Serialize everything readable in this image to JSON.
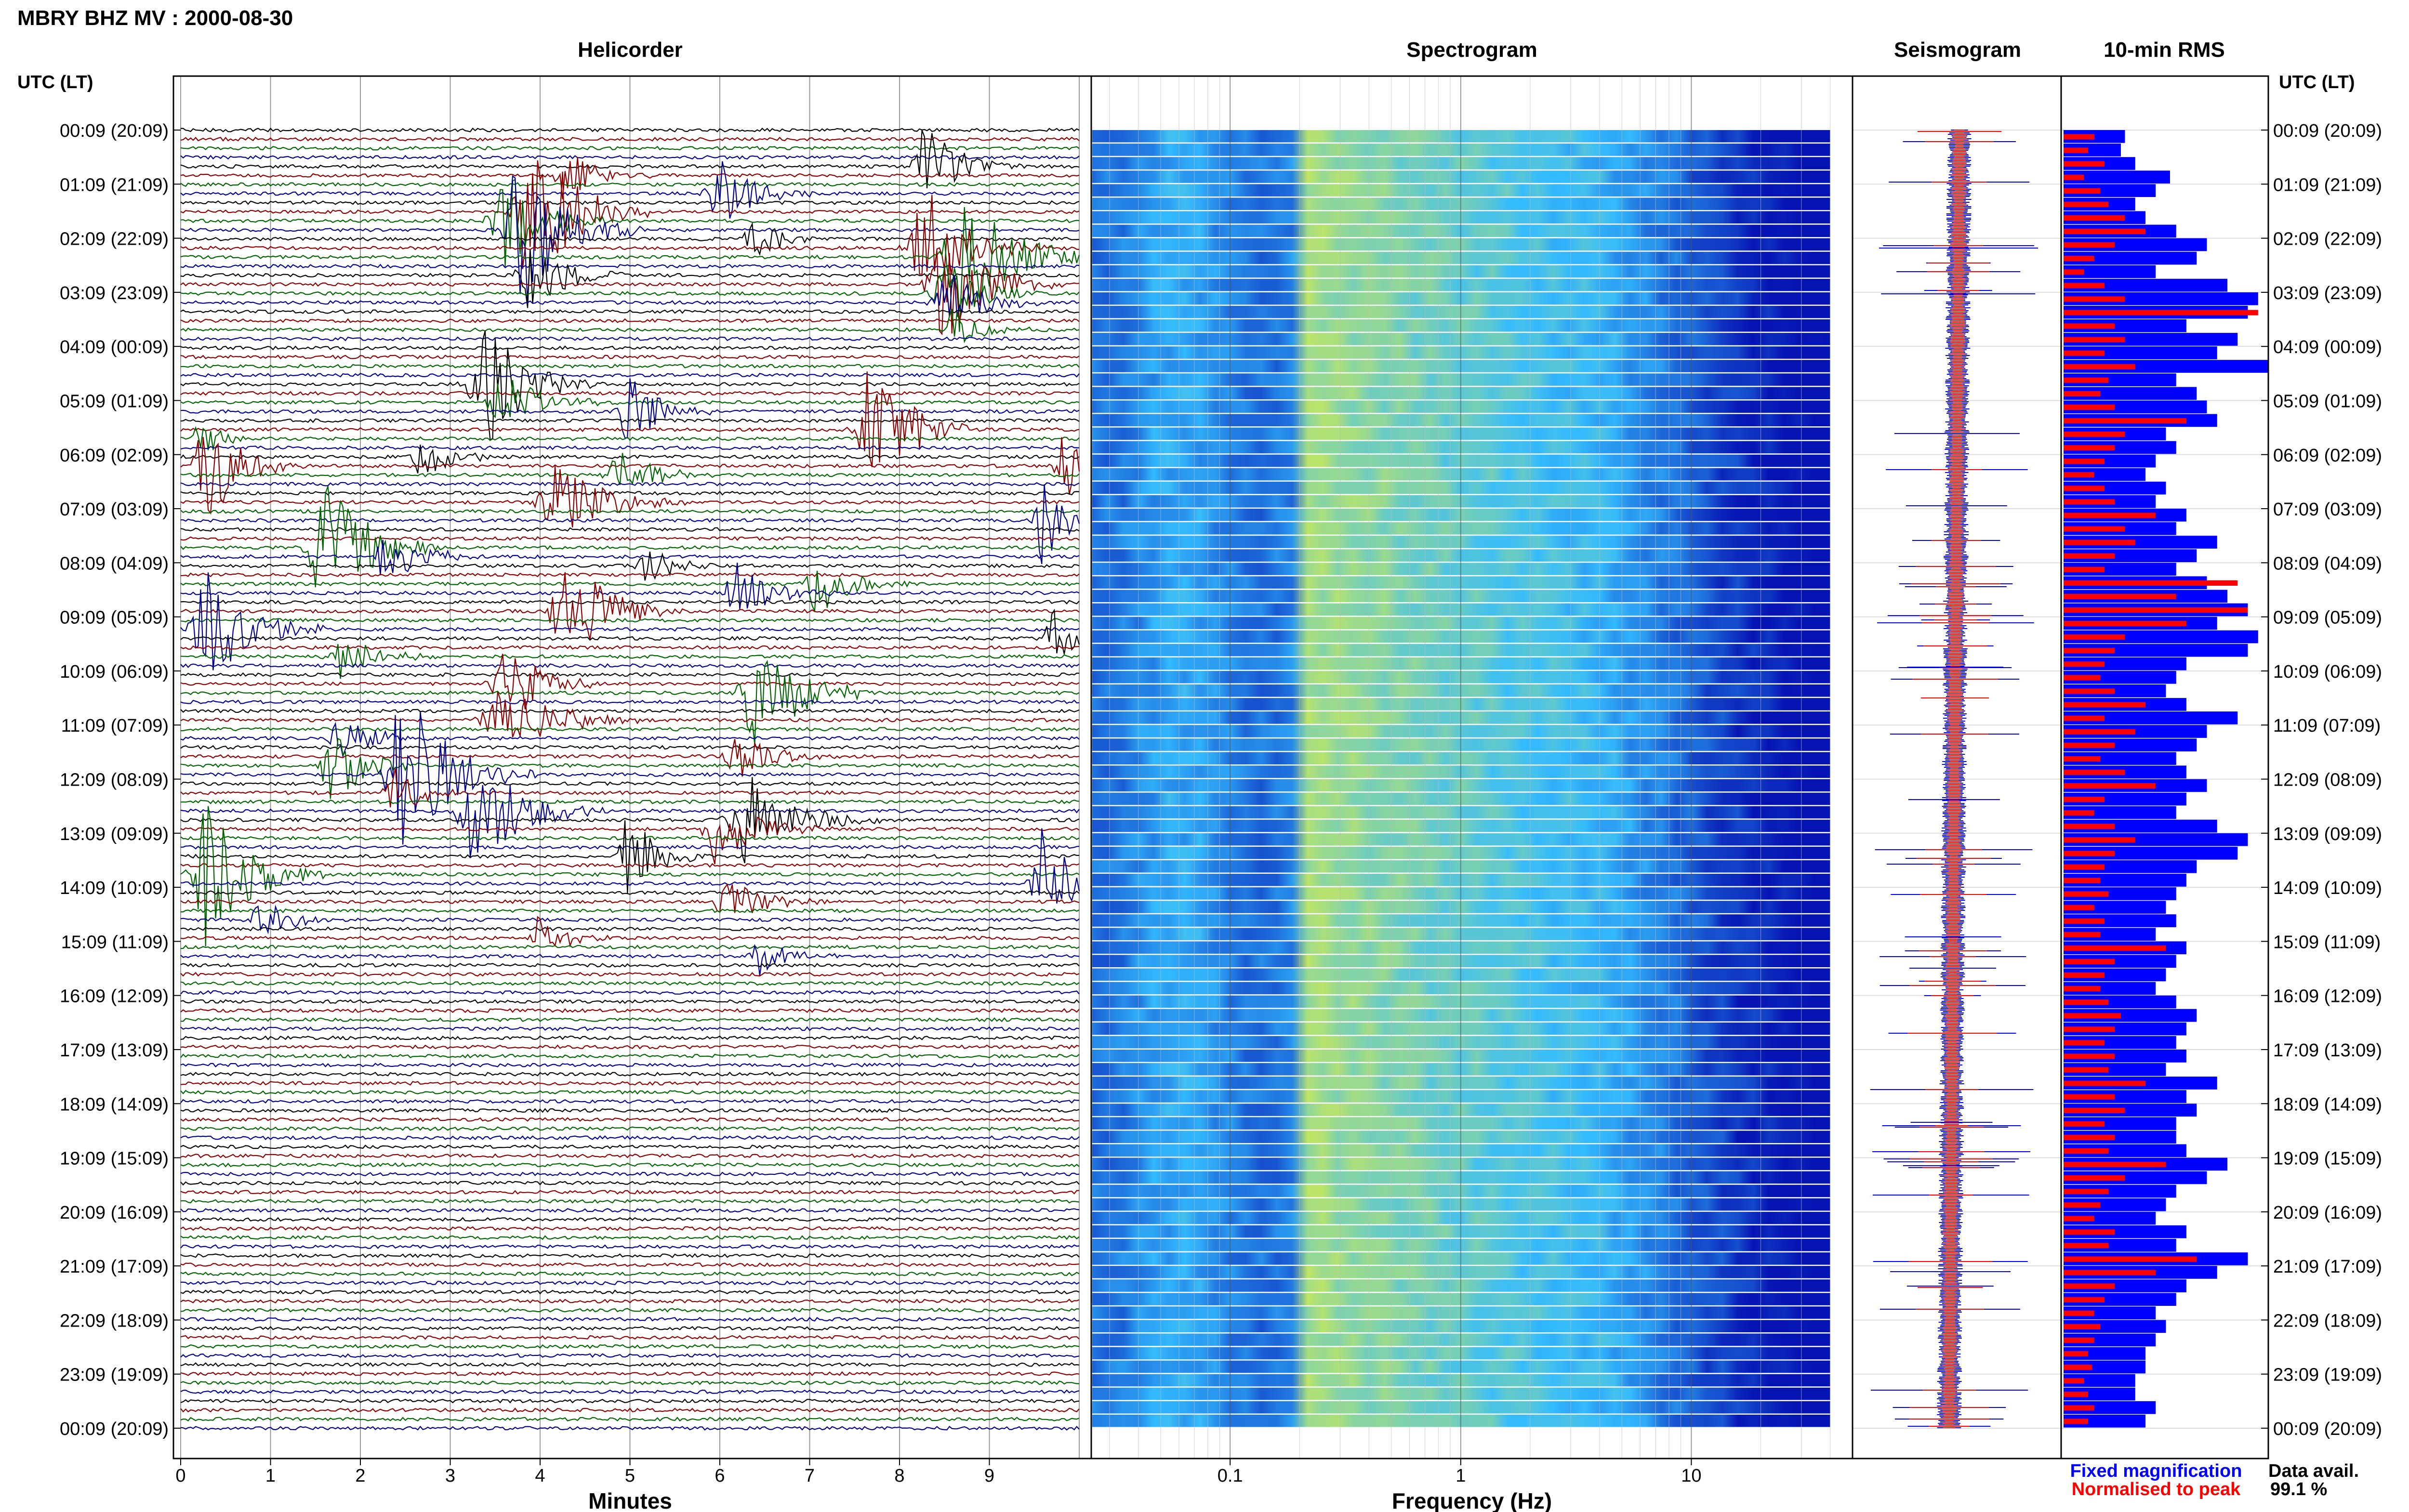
{
  "header": {
    "title": "MBRY BHZ MV : 2000-08-30",
    "utc_label": "UTC (LT)",
    "data_avail_label": "Data avail.",
    "data_avail_value": "99.1 %"
  },
  "panels": {
    "helicorder": "Helicorder",
    "spectrogram": "Spectrogram",
    "seismogram": "Seismogram",
    "rms": "10-min RMS"
  },
  "legend": {
    "fixed": "Fixed magnification",
    "normalised": "Normalised to peak"
  },
  "colors": {
    "trace_colors": [
      "#000000",
      "#8b0000",
      "#006400",
      "#00008b"
    ],
    "fixed": "#0000ff",
    "normalised": "#ff0000",
    "spectro_low": "#0000aa",
    "spectro_mid": "#33bbff",
    "spectro_high": "#ddee44"
  },
  "chart_data": [
    {
      "type": "line",
      "panel": "Helicorder",
      "xlabel": "Minutes",
      "x_ticks": [
        "0",
        "1",
        "2",
        "3",
        "4",
        "5",
        "6",
        "7",
        "8",
        "9"
      ],
      "xlim": [
        0,
        10
      ],
      "row_count": 144,
      "y_ticks": [
        "00:09 (20:09)",
        "01:09 (21:09)",
        "02:09 (22:09)",
        "03:09 (23:09)",
        "04:09 (00:09)",
        "05:09 (01:09)",
        "06:09 (02:09)",
        "07:09 (03:09)",
        "08:09 (04:09)",
        "09:09 (05:09)",
        "10:09 (06:09)",
        "11:09 (07:09)",
        "12:09 (08:09)",
        "13:09 (09:09)",
        "14:09 (10:09)",
        "15:09 (11:09)",
        "16:09 (12:09)",
        "17:09 (13:09)",
        "18:09 (14:09)",
        "19:09 (15:09)",
        "20:09 (16:09)",
        "21:09 (17:09)",
        "22:09 (18:09)",
        "23:09 (19:09)",
        "00:09 (20:09)"
      ],
      "events": [
        {
          "row": 4,
          "minute": 8.3,
          "amp": 2.2,
          "w": 0.5
        },
        {
          "row": 5,
          "minute": 4.3,
          "amp": 1.5,
          "w": 0.45
        },
        {
          "row": 7,
          "minute": 6.0,
          "amp": 2.0,
          "w": 0.5
        },
        {
          "row": 9,
          "minute": 3.9,
          "amp": 5.0,
          "w": 0.6
        },
        {
          "row": 10,
          "minute": 3.6,
          "amp": 3.0,
          "w": 0.55
        },
        {
          "row": 11,
          "minute": 3.8,
          "amp": 4.5,
          "w": 0.6
        },
        {
          "row": 12,
          "minute": 6.4,
          "amp": 1.2,
          "w": 0.4
        },
        {
          "row": 13,
          "minute": 8.3,
          "amp": 3.0,
          "w": 0.6
        },
        {
          "row": 14,
          "minute": 8.7,
          "amp": 4.0,
          "w": 0.7
        },
        {
          "row": 16,
          "minute": 3.9,
          "amp": 2.0,
          "w": 0.5
        },
        {
          "row": 17,
          "minute": 8.5,
          "amp": 3.2,
          "w": 0.6
        },
        {
          "row": 18,
          "minute": 8.5,
          "amp": 2.0,
          "w": 0.5
        },
        {
          "row": 19,
          "minute": 8.5,
          "amp": 2.0,
          "w": 0.5
        },
        {
          "row": 22,
          "minute": 8.6,
          "amp": 1.2,
          "w": 0.4
        },
        {
          "row": 28,
          "minute": 3.4,
          "amp": 3.5,
          "w": 0.6
        },
        {
          "row": 30,
          "minute": 3.6,
          "amp": 1.5,
          "w": 0.6
        },
        {
          "row": 31,
          "minute": 5.0,
          "amp": 2.0,
          "w": 0.45
        },
        {
          "row": 33,
          "minute": 7.7,
          "amp": 4.5,
          "w": 0.5
        },
        {
          "row": 34,
          "minute": 0.2,
          "amp": 1.2,
          "w": 0.3
        },
        {
          "row": 36,
          "minute": 2.7,
          "amp": 1.3,
          "w": 0.4
        },
        {
          "row": 37,
          "minute": 0.3,
          "amp": 3.0,
          "w": 0.5
        },
        {
          "row": 37,
          "minute": 9.8,
          "amp": 3.0,
          "w": 0.2
        },
        {
          "row": 38,
          "minute": 4.9,
          "amp": 1.5,
          "w": 0.5
        },
        {
          "row": 41,
          "minute": 4.2,
          "amp": 2.2,
          "w": 0.7
        },
        {
          "row": 43,
          "minute": 9.6,
          "amp": 2.5,
          "w": 0.3
        },
        {
          "row": 46,
          "minute": 1.6,
          "amp": 4.0,
          "w": 0.6
        },
        {
          "row": 47,
          "minute": 2.3,
          "amp": 1.5,
          "w": 0.5
        },
        {
          "row": 48,
          "minute": 5.2,
          "amp": 1.0,
          "w": 0.4
        },
        {
          "row": 50,
          "minute": 7.1,
          "amp": 1.6,
          "w": 0.5
        },
        {
          "row": 51,
          "minute": 6.2,
          "amp": 1.5,
          "w": 0.5
        },
        {
          "row": 53,
          "minute": 4.3,
          "amp": 3.0,
          "w": 0.6
        },
        {
          "row": 55,
          "minute": 0.3,
          "amp": 3.5,
          "w": 0.6
        },
        {
          "row": 56,
          "minute": 9.7,
          "amp": 1.8,
          "w": 0.3
        },
        {
          "row": 58,
          "minute": 1.8,
          "amp": 1.2,
          "w": 0.5
        },
        {
          "row": 61,
          "minute": 3.6,
          "amp": 2.5,
          "w": 0.5
        },
        {
          "row": 62,
          "minute": 6.4,
          "amp": 3.5,
          "w": 0.6
        },
        {
          "row": 65,
          "minute": 3.6,
          "amp": 2.2,
          "w": 0.7
        },
        {
          "row": 67,
          "minute": 1.8,
          "amp": 1.2,
          "w": 0.5
        },
        {
          "row": 69,
          "minute": 6.2,
          "amp": 1.4,
          "w": 0.5
        },
        {
          "row": 70,
          "minute": 1.7,
          "amp": 2.0,
          "w": 0.5
        },
        {
          "row": 71,
          "minute": 2.5,
          "amp": 4.5,
          "w": 0.7
        },
        {
          "row": 73,
          "minute": 2.4,
          "amp": 1.3,
          "w": 0.4
        },
        {
          "row": 75,
          "minute": 3.3,
          "amp": 3.0,
          "w": 0.7
        },
        {
          "row": 76,
          "minute": 6.3,
          "amp": 2.5,
          "w": 0.7
        },
        {
          "row": 77,
          "minute": 6.0,
          "amp": 2.0,
          "w": 0.6
        },
        {
          "row": 80,
          "minute": 5.0,
          "amp": 2.5,
          "w": 0.4
        },
        {
          "row": 82,
          "minute": 0.3,
          "amp": 4.0,
          "w": 0.6
        },
        {
          "row": 83,
          "minute": 9.6,
          "amp": 3.0,
          "w": 0.4
        },
        {
          "row": 85,
          "minute": 6.1,
          "amp": 1.5,
          "w": 0.5
        },
        {
          "row": 87,
          "minute": 0.9,
          "amp": 1.2,
          "w": 0.4
        },
        {
          "row": 89,
          "minute": 4.0,
          "amp": 1.2,
          "w": 0.4
        },
        {
          "row": 91,
          "minute": 6.4,
          "amp": 1.3,
          "w": 0.4
        }
      ]
    },
    {
      "type": "heatmap",
      "panel": "Spectrogram",
      "xlabel": "Frequency (Hz)",
      "x_scale": "log",
      "xlim": [
        0.025,
        50
      ],
      "x_tick_labels": [
        "0.1",
        "1",
        "10"
      ],
      "x_tick_values": [
        0.1,
        1,
        10
      ]
    },
    {
      "type": "line",
      "panel": "Seismogram",
      "series": [
        {
          "name": "Fixed magnification",
          "color": "#0000ff"
        },
        {
          "name": "Normalised to peak",
          "color": "#ff0000"
        }
      ]
    },
    {
      "type": "bar",
      "panel": "10-min RMS",
      "orientation": "horizontal",
      "series": [
        {
          "name": "Fixed magnification",
          "color": "#0000ff",
          "values": [
            0.3,
            0.28,
            0.35,
            0.52,
            0.45,
            0.35,
            0.4,
            0.55,
            0.7,
            0.65,
            0.45,
            0.8,
            0.95,
            0.9,
            0.6,
            0.85,
            0.75,
            1.0,
            0.55,
            0.65,
            0.7,
            0.75,
            0.5,
            0.55,
            0.45,
            0.4,
            0.5,
            0.45,
            0.6,
            0.55,
            0.75,
            0.65,
            0.55,
            0.7,
            0.8,
            0.9,
            0.75,
            0.95,
            0.9,
            0.6,
            0.55,
            0.5,
            0.6,
            0.85,
            0.7,
            0.65,
            0.55,
            0.6,
            0.7,
            0.6,
            0.55,
            0.75,
            0.9,
            0.85,
            0.65,
            0.6,
            0.55,
            0.5,
            0.55,
            0.45,
            0.6,
            0.55,
            0.5,
            0.45,
            0.55,
            0.65,
            0.6,
            0.55,
            0.6,
            0.5,
            0.75,
            0.6,
            0.65,
            0.55,
            0.55,
            0.6,
            0.8,
            0.7,
            0.55,
            0.5,
            0.45,
            0.6,
            0.55,
            0.9,
            0.75,
            0.6,
            0.55,
            0.45,
            0.5,
            0.45,
            0.4,
            0.4,
            0.35,
            0.35,
            0.45,
            0.4
          ]
        },
        {
          "name": "Normalised to peak",
          "color": "#ff0000",
          "values": [
            0.15,
            0.12,
            0.2,
            0.1,
            0.18,
            0.22,
            0.3,
            0.4,
            0.25,
            0.15,
            0.1,
            0.2,
            0.3,
            0.95,
            0.25,
            0.3,
            0.2,
            0.35,
            0.22,
            0.18,
            0.25,
            0.6,
            0.3,
            0.25,
            0.2,
            0.15,
            0.2,
            0.25,
            0.45,
            0.3,
            0.35,
            0.25,
            0.2,
            0.85,
            0.55,
            0.9,
            0.6,
            0.3,
            0.25,
            0.2,
            0.18,
            0.25,
            0.4,
            0.2,
            0.35,
            0.25,
            0.18,
            0.3,
            0.45,
            0.2,
            0.15,
            0.25,
            0.35,
            0.25,
            0.2,
            0.18,
            0.22,
            0.15,
            0.2,
            0.18,
            0.5,
            0.25,
            0.2,
            0.18,
            0.22,
            0.28,
            0.25,
            0.2,
            0.25,
            0.22,
            0.4,
            0.25,
            0.3,
            0.2,
            0.25,
            0.22,
            0.5,
            0.3,
            0.22,
            0.18,
            0.15,
            0.25,
            0.22,
            0.65,
            0.45,
            0.25,
            0.2,
            0.15,
            0.18,
            0.15,
            0.12,
            0.14,
            0.1,
            0.12,
            0.15,
            0.12
          ]
        }
      ]
    }
  ]
}
